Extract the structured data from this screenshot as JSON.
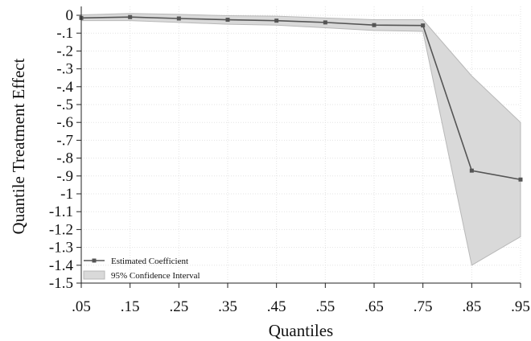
{
  "chart_data": {
    "type": "line",
    "xlabel": "Quantiles",
    "ylabel": "Quantile Treatment Effect",
    "x": [
      0.05,
      0.15,
      0.25,
      0.35,
      0.45,
      0.55,
      0.65,
      0.75,
      0.85,
      0.95
    ],
    "x_tick_labels": [
      ".05",
      ".15",
      ".25",
      ".35",
      ".45",
      ".55",
      ".65",
      ".75",
      ".85",
      ".95"
    ],
    "ylim": [
      -1.5,
      0
    ],
    "y_ticks": [
      0,
      -0.1,
      -0.2,
      -0.3,
      -0.4,
      -0.5,
      -0.6,
      -0.7,
      -0.8,
      -0.9,
      -1,
      -1.1,
      -1.2,
      -1.3,
      -1.4,
      -1.5
    ],
    "y_tick_labels": [
      "0",
      "-.1",
      "-.2",
      "-.3",
      "-.4",
      "-.5",
      "-.6",
      "-.7",
      "-.8",
      "-.9",
      "-1",
      "-1.1",
      "-1.2",
      "-1.3",
      "-1.4",
      "-1.5"
    ],
    "grid": true,
    "legend_position": "bottom-left",
    "series": [
      {
        "name": "Estimated Coefficient",
        "values": [
          -0.015,
          -0.01,
          -0.018,
          -0.025,
          -0.03,
          -0.04,
          -0.055,
          -0.057,
          -0.87,
          -0.92
        ],
        "color": "#555555"
      }
    ],
    "confidence_band": {
      "name": "95% Confidence Interval",
      "lower": [
        -0.03,
        -0.03,
        -0.04,
        -0.05,
        -0.055,
        -0.07,
        -0.085,
        -0.09,
        -1.4,
        -1.24
      ],
      "upper": [
        0.002,
        0.01,
        0.005,
        -0.002,
        -0.005,
        -0.015,
        -0.025,
        -0.025,
        -0.34,
        -0.6
      ],
      "color": "#d9d9d9"
    }
  }
}
